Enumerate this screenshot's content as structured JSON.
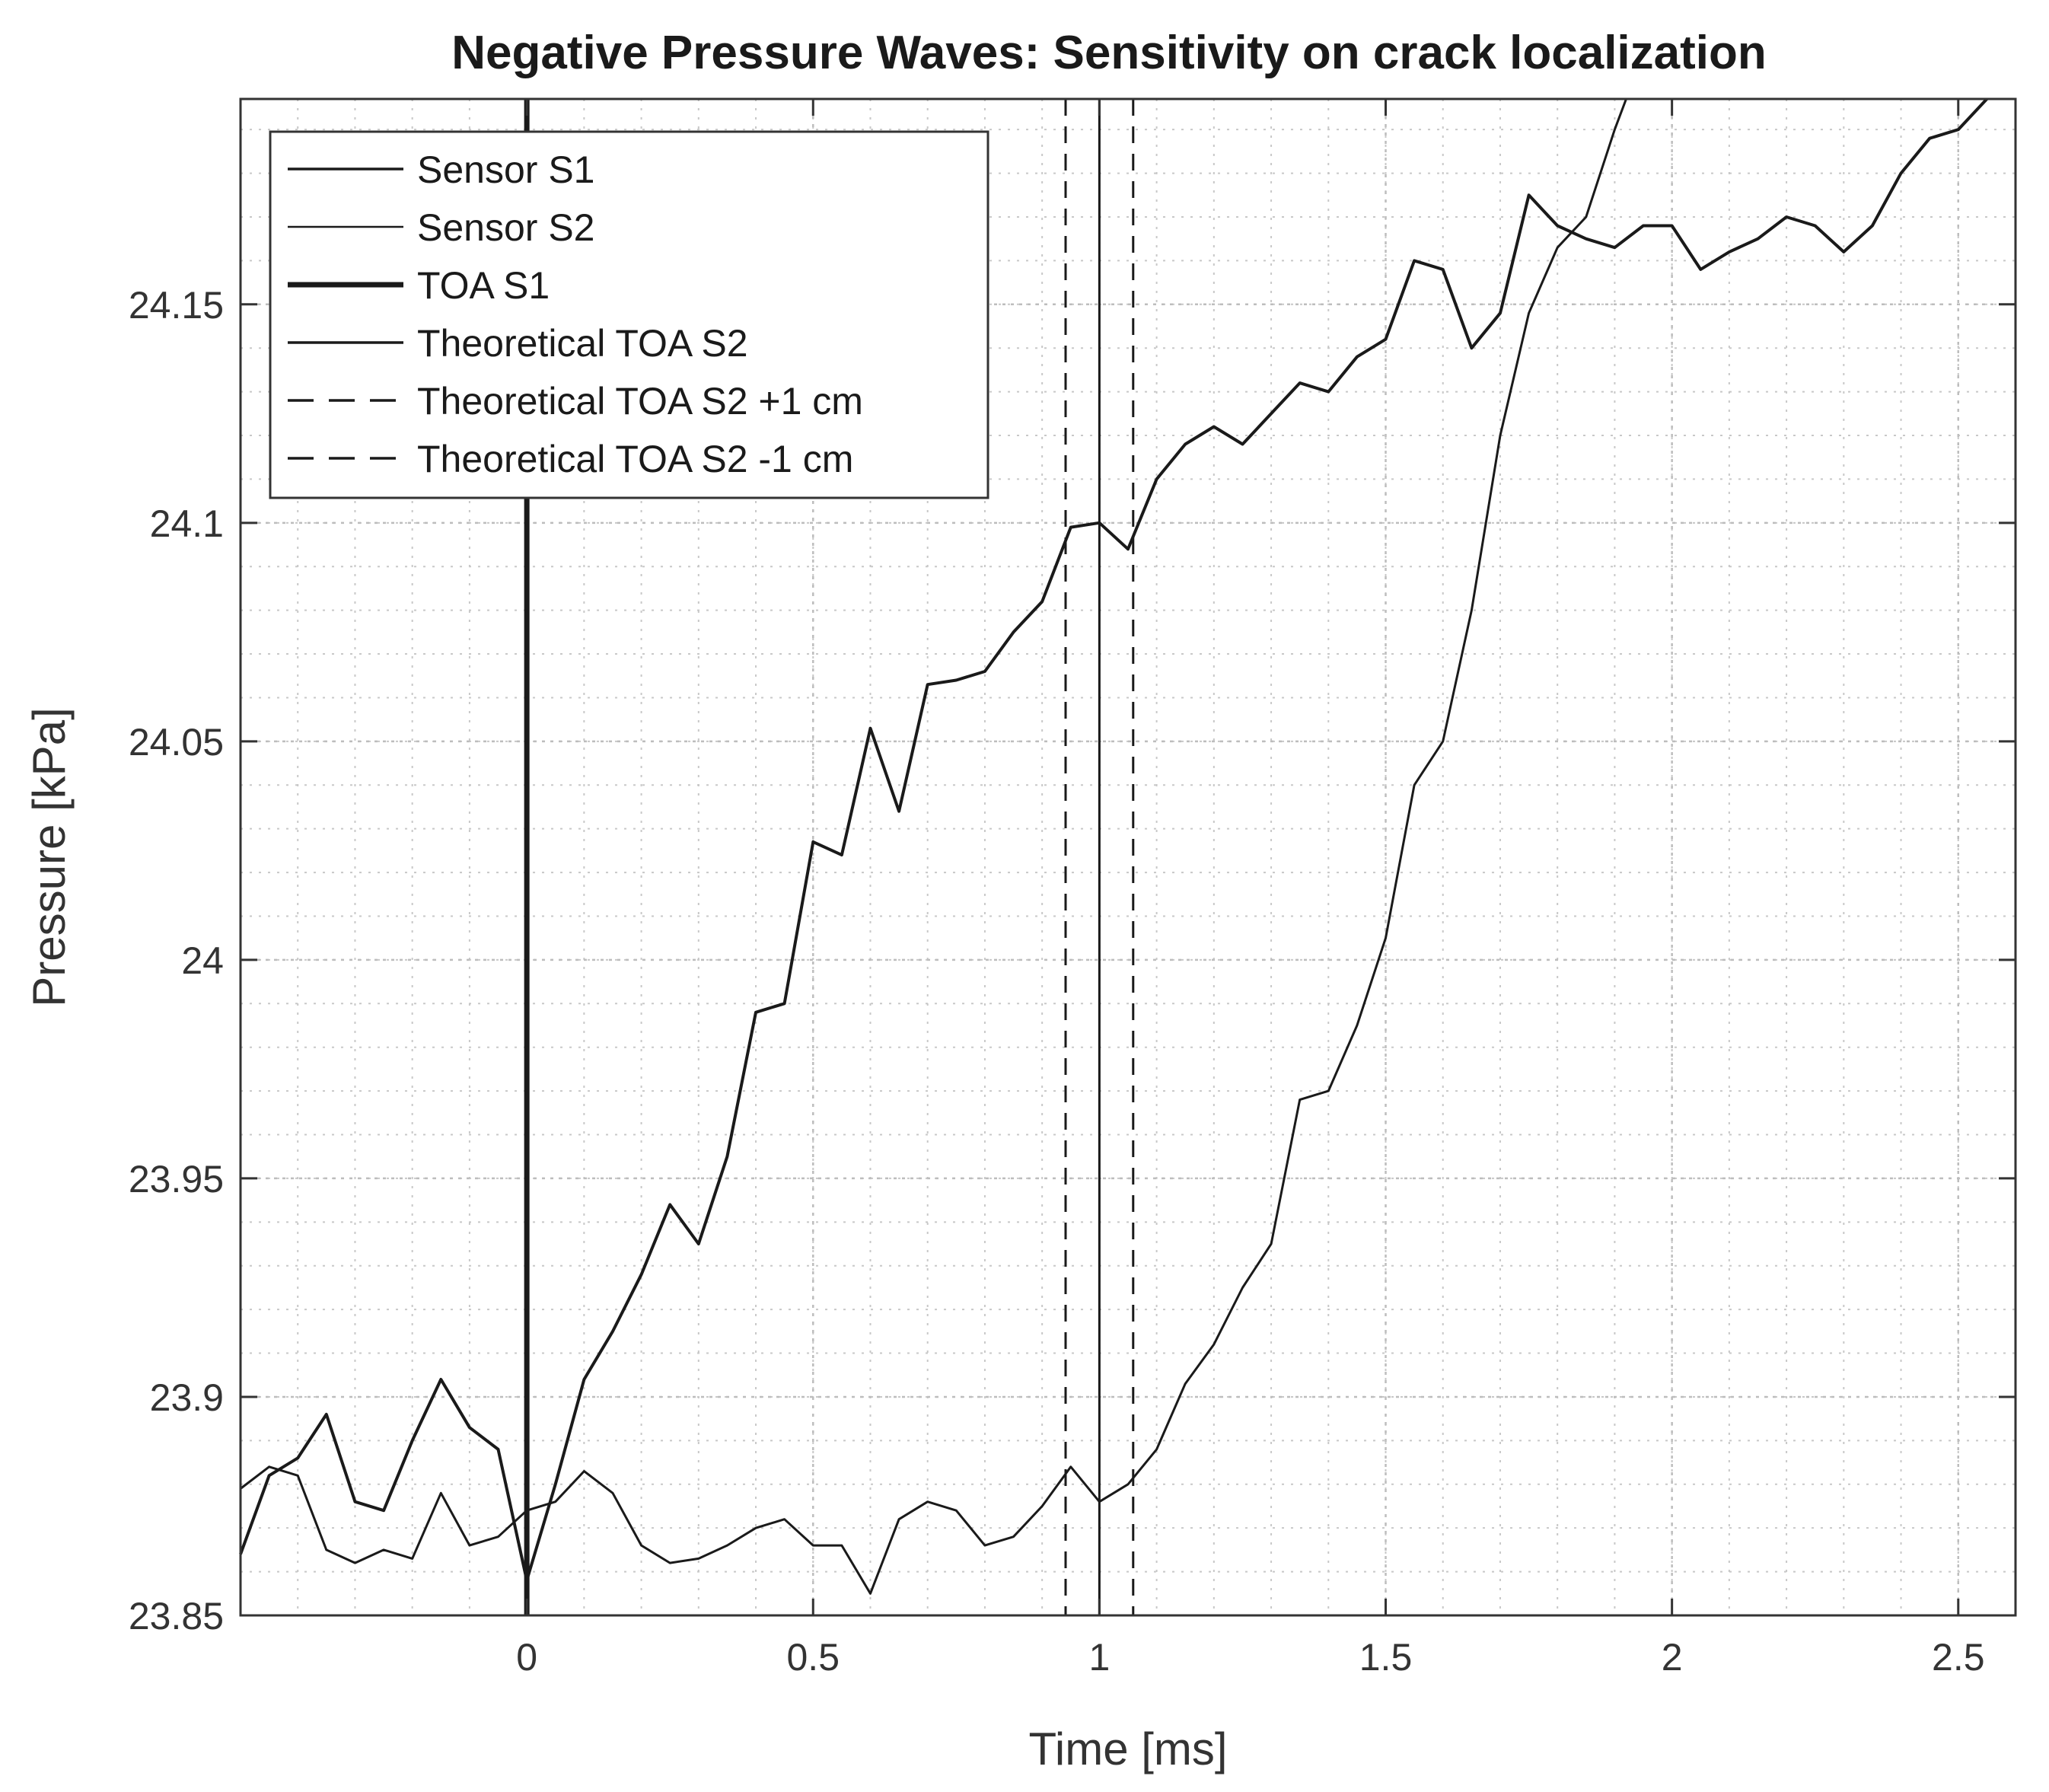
{
  "chart_data": {
    "type": "line",
    "title": "Negative Pressure Waves: Sensitivity on crack localization",
    "xlabel": "Time [ms]",
    "ylabel": "Pressure [kPa]",
    "xlim": [
      -0.5,
      2.6
    ],
    "ylim": [
      23.85,
      24.197
    ],
    "xticks": [
      0,
      0.5,
      1,
      1.5,
      2,
      2.5
    ],
    "xtick_labels": [
      "0",
      "0.5",
      "1",
      "1.5",
      "2",
      "2.5"
    ],
    "yticks": [
      23.85,
      23.9,
      23.95,
      24.0,
      24.05,
      24.1,
      24.15
    ],
    "ytick_labels": [
      "23.85",
      "23.9",
      "23.95",
      "24",
      "24.05",
      "24.1",
      "24.15"
    ],
    "grid": true,
    "minor_grid": true,
    "legend_position": "top-left",
    "series": [
      {
        "name": "Sensor S1",
        "style": "solid",
        "color": "#1a1a1a",
        "x": [
          -0.5,
          -0.45,
          -0.4,
          -0.35,
          -0.3,
          -0.25,
          -0.2,
          -0.15,
          -0.1,
          -0.05,
          0.0,
          0.05,
          0.1,
          0.15,
          0.2,
          0.25,
          0.3,
          0.35,
          0.4,
          0.45,
          0.5,
          0.55,
          0.6,
          0.65,
          0.7,
          0.75,
          0.8,
          0.85,
          0.9,
          0.95,
          1.0,
          1.05,
          1.1,
          1.15,
          1.2,
          1.25,
          1.3,
          1.35,
          1.4,
          1.45,
          1.5,
          1.55,
          1.6,
          1.65,
          1.7,
          1.75,
          1.8,
          1.85,
          1.9,
          1.95,
          2.0,
          2.05,
          2.1,
          2.15,
          2.2,
          2.25,
          2.3,
          2.35,
          2.4,
          2.45,
          2.5,
          2.55
        ],
        "y": [
          23.864,
          23.882,
          23.886,
          23.896,
          23.876,
          23.874,
          23.89,
          23.904,
          23.893,
          23.888,
          23.858,
          23.88,
          23.904,
          23.915,
          23.928,
          23.944,
          23.935,
          23.955,
          23.988,
          23.99,
          24.027,
          24.024,
          24.053,
          24.034,
          24.063,
          24.064,
          24.066,
          24.075,
          24.082,
          24.099,
          24.1,
          24.094,
          24.11,
          24.118,
          24.122,
          24.118,
          24.125,
          24.132,
          24.13,
          24.138,
          24.142,
          24.16,
          24.158,
          24.14,
          24.148,
          24.175,
          24.168,
          24.165,
          24.163,
          24.168,
          24.168,
          24.158,
          24.162,
          24.165,
          24.17,
          24.168,
          24.162,
          24.168,
          24.18,
          24.188,
          24.19,
          24.197
        ]
      },
      {
        "name": "Sensor S2",
        "style": "solid",
        "color": "#1a1a1a",
        "x": [
          -0.5,
          -0.45,
          -0.4,
          -0.35,
          -0.3,
          -0.25,
          -0.2,
          -0.15,
          -0.1,
          -0.05,
          0.0,
          0.05,
          0.1,
          0.15,
          0.2,
          0.25,
          0.3,
          0.35,
          0.4,
          0.45,
          0.5,
          0.55,
          0.6,
          0.65,
          0.7,
          0.75,
          0.8,
          0.85,
          0.9,
          0.95,
          1.0,
          1.05,
          1.1,
          1.15,
          1.2,
          1.25,
          1.3,
          1.35,
          1.4,
          1.45,
          1.5,
          1.55,
          1.6,
          1.65,
          1.7,
          1.75,
          1.8,
          1.85,
          1.9,
          1.92
        ],
        "y": [
          23.879,
          23.884,
          23.882,
          23.865,
          23.862,
          23.865,
          23.863,
          23.878,
          23.866,
          23.868,
          23.874,
          23.876,
          23.883,
          23.878,
          23.866,
          23.862,
          23.863,
          23.866,
          23.87,
          23.872,
          23.866,
          23.866,
          23.855,
          23.872,
          23.876,
          23.874,
          23.866,
          23.868,
          23.875,
          23.884,
          23.876,
          23.88,
          23.888,
          23.903,
          23.912,
          23.925,
          23.935,
          23.968,
          23.97,
          23.985,
          24.005,
          24.04,
          24.05,
          24.08,
          24.12,
          24.148,
          24.163,
          24.17,
          24.19,
          24.197
        ]
      }
    ],
    "vlines": [
      {
        "name": "TOA S1",
        "x": 0,
        "style": "solid",
        "weight": "thick"
      },
      {
        "name": "Theoretical TOA S2",
        "x": 1.0,
        "style": "solid",
        "weight": "thin"
      },
      {
        "name": "Theoretical TOA S2 +1 cm",
        "x": 0.941,
        "style": "dashed",
        "weight": "thin"
      },
      {
        "name": "Theoretical TOA S2  -1 cm",
        "x": 1.059,
        "style": "dashed",
        "weight": "thin"
      }
    ],
    "legend": [
      {
        "label": "Sensor S1",
        "style": "solid",
        "weight": "normal"
      },
      {
        "label": "Sensor S2",
        "style": "solid",
        "weight": "thin"
      },
      {
        "label": "TOA S1",
        "style": "solid",
        "weight": "thick"
      },
      {
        "label": "Theoretical TOA S2",
        "style": "solid",
        "weight": "normal"
      },
      {
        "label": "Theoretical TOA S2 +1 cm",
        "style": "dashed",
        "weight": "normal"
      },
      {
        "label": "Theoretical TOA S2  -1 cm",
        "style": "dashed",
        "weight": "normal"
      }
    ]
  }
}
